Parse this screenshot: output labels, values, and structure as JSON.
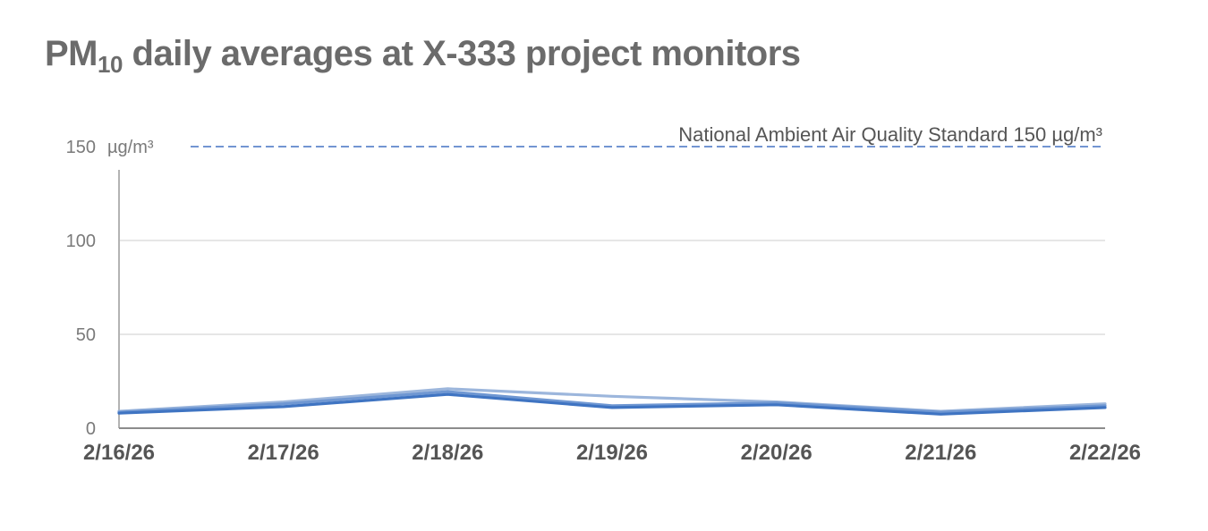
{
  "chart_data": {
    "type": "line",
    "title": {
      "prefix": "PM",
      "subscript": "10",
      "suffix": " daily averages at X-333 project monitors"
    },
    "ylabel": "µg/m³",
    "ylim": [
      0,
      150
    ],
    "yticks": [
      "0",
      "50",
      "100",
      "150"
    ],
    "ytick_values": [
      0,
      50,
      100,
      150
    ],
    "categories": [
      "2/16/26",
      "2/17/26",
      "2/18/26",
      "2/19/26",
      "2/20/26",
      "2/21/26",
      "2/22/26"
    ],
    "grid": true,
    "reference_line": {
      "value": 150,
      "label": "National Ambient Air Quality Standard 150 µg/m³",
      "color": "#4472c4",
      "style": "dashed"
    },
    "series": [
      {
        "values": [
          9,
          14,
          21,
          17,
          14,
          9,
          13
        ],
        "color": "#9cb6dc"
      },
      {
        "values": [
          8.5,
          13,
          19.5,
          12,
          13.5,
          8.5,
          12
        ],
        "color": "#6f97d2"
      },
      {
        "values": [
          8,
          11.5,
          18,
          11,
          12.5,
          7.5,
          11
        ],
        "color": "#3f74c2"
      }
    ]
  }
}
